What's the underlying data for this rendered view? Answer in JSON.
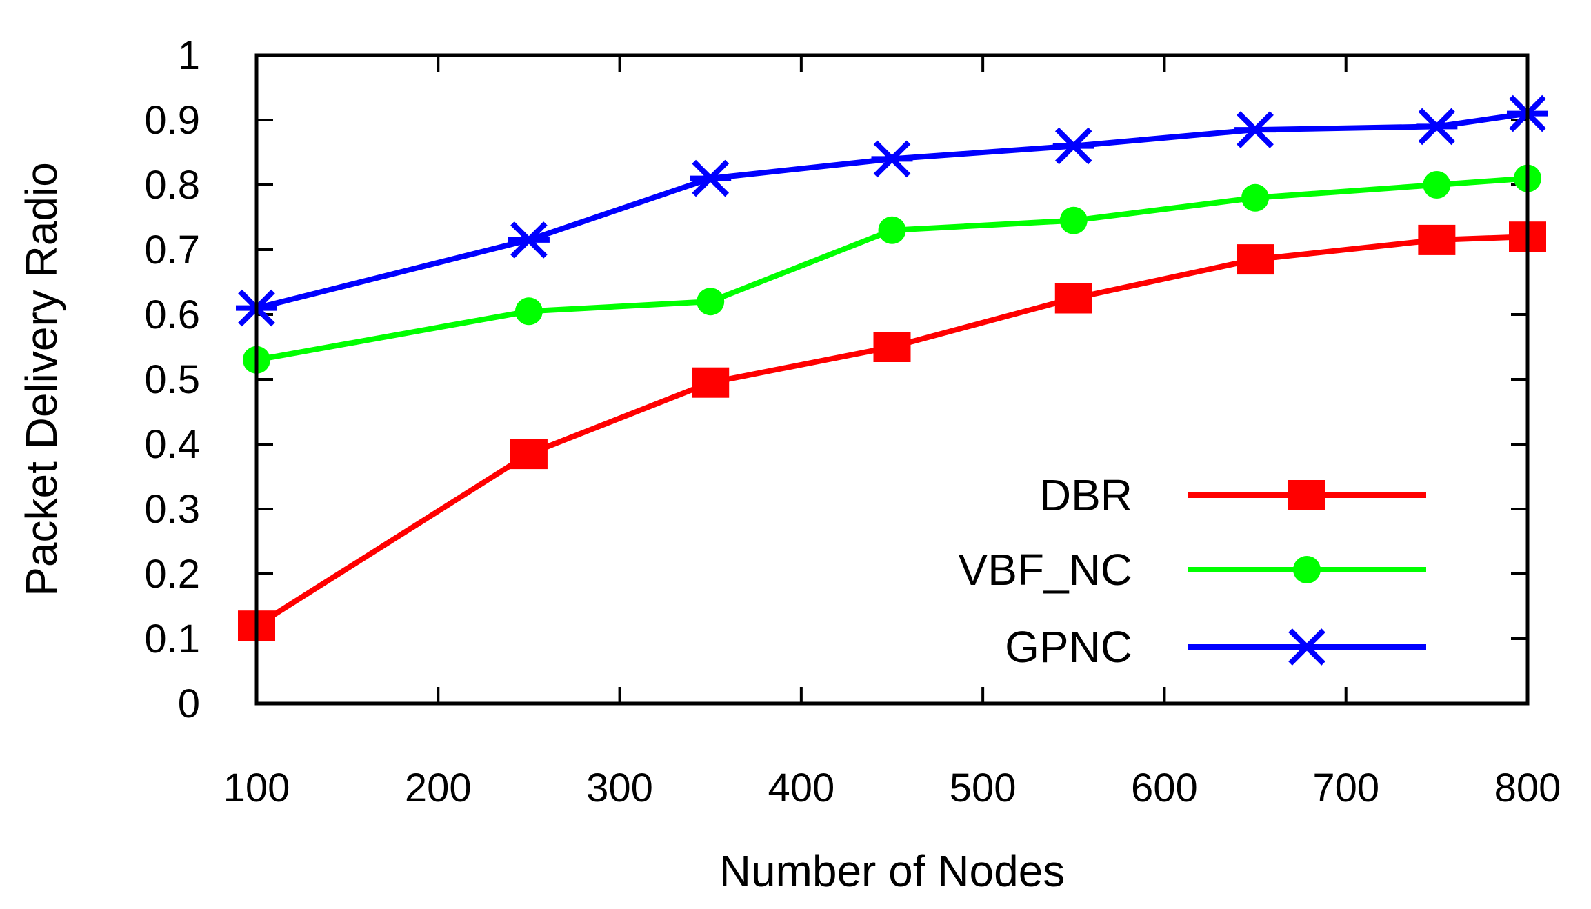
{
  "chart_data": {
    "type": "line",
    "title": "",
    "xlabel": "Number of Nodes",
    "ylabel": "Packet Delivery Radio",
    "xlim": [
      100,
      800
    ],
    "ylim": [
      0,
      1
    ],
    "x_ticks": [
      "100",
      "200",
      "300",
      "400",
      "500",
      "600",
      "700",
      "800"
    ],
    "y_ticks": [
      "0",
      "0.1",
      "0.2",
      "0.3",
      "0.4",
      "0.5",
      "0.6",
      "0.7",
      "0.8",
      "0.9",
      "1"
    ],
    "grid": false,
    "legend_position": "bottom-right",
    "x": [
      100,
      250,
      350,
      450,
      550,
      650,
      750,
      800
    ],
    "series": [
      {
        "name": "DBR",
        "color": "#ff0000",
        "marker": "square",
        "values": [
          0.12,
          0.385,
          0.495,
          0.55,
          0.625,
          0.685,
          0.715,
          0.72
        ]
      },
      {
        "name": "VBF_NC",
        "color": "#00ff00",
        "marker": "circle",
        "values": [
          0.53,
          0.605,
          0.62,
          0.73,
          0.745,
          0.78,
          0.8,
          0.81
        ]
      },
      {
        "name": "GPNC",
        "color": "#0000ff",
        "marker": "star",
        "values": [
          0.61,
          0.715,
          0.81,
          0.84,
          0.86,
          0.885,
          0.89,
          0.91
        ]
      }
    ]
  }
}
